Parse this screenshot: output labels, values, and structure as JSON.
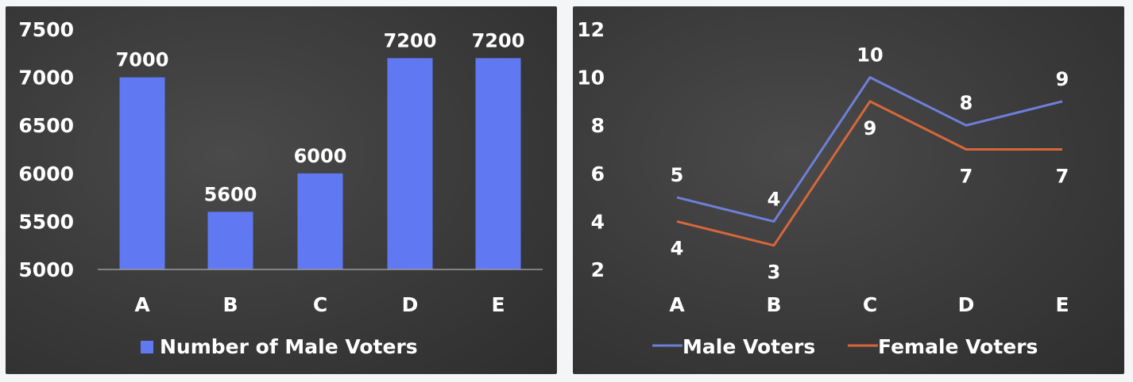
{
  "colors": {
    "bar": "#6079f2",
    "male_line": "#6e7fd9",
    "female_line": "#d9663a",
    "text": "#ffffff",
    "axis": "#9a9a9a"
  },
  "chart_data": [
    {
      "type": "bar",
      "categories": [
        "A",
        "B",
        "C",
        "D",
        "E"
      ],
      "series": [
        {
          "name": "Number of Male Voters",
          "values": [
            7000,
            5600,
            6000,
            7200,
            7200
          ]
        }
      ],
      "data_labels": [
        "7000",
        "5600",
        "6000",
        "7200",
        "7200"
      ],
      "yticks": [
        "5000",
        "5500",
        "6000",
        "6500",
        "7000",
        "7500"
      ],
      "ylim": [
        5000,
        7500
      ],
      "grid": false,
      "legend": "bottom"
    },
    {
      "type": "line",
      "categories": [
        "A",
        "B",
        "C",
        "D",
        "E"
      ],
      "series": [
        {
          "name": "Male Voters",
          "values": [
            5,
            4,
            10,
            8,
            9
          ],
          "labels": [
            "5",
            "4",
            "10",
            "8",
            "9"
          ]
        },
        {
          "name": "Female Voters",
          "values": [
            4,
            3,
            9,
            7,
            7
          ],
          "labels": [
            "4",
            "3",
            "9",
            "7",
            "7"
          ]
        }
      ],
      "yticks": [
        "2",
        "4",
        "6",
        "8",
        "10",
        "12"
      ],
      "ylim": [
        2,
        12
      ],
      "grid": false,
      "legend": "bottom"
    }
  ]
}
